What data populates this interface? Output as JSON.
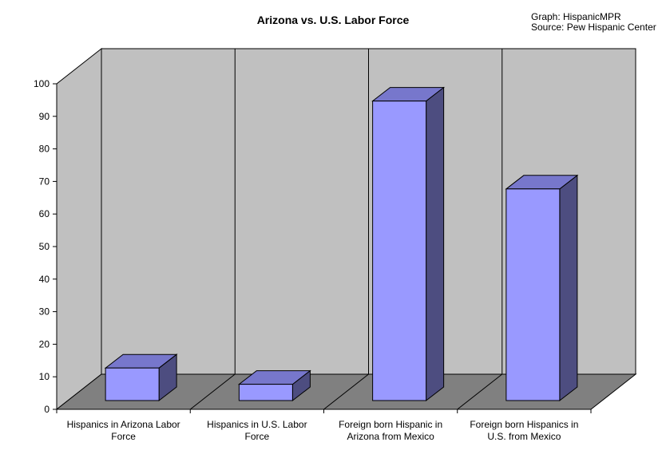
{
  "chart_data": {
    "type": "bar",
    "title": "Arizona vs. U.S. Labor Force",
    "credits": [
      "Graph: HispanicMPR",
      "Source: Pew Hispanic Center"
    ],
    "categories": [
      [
        "Hispanics in Arizona Labor",
        "Force"
      ],
      [
        "Hispanics in U.S. Labor",
        "Force"
      ],
      [
        "Foreign born Hispanic in",
        "Arizona from Mexico"
      ],
      [
        "Foreign born Hispanics in",
        "U.S. from Mexico"
      ]
    ],
    "values": [
      10,
      5,
      92,
      65
    ],
    "ylim": [
      0,
      100
    ],
    "yticks": [
      0,
      10,
      20,
      30,
      40,
      50,
      60,
      70,
      80,
      90,
      100
    ],
    "three_d": true,
    "grid": "vertical category dividers",
    "colors": {
      "bar_front": "#9999ff",
      "bar_top": "#7777cc",
      "bar_side": "#4d4d80",
      "back_wall": "#c0c0c0",
      "side_wall": "#c0c0c0",
      "floor": "#808080"
    }
  }
}
